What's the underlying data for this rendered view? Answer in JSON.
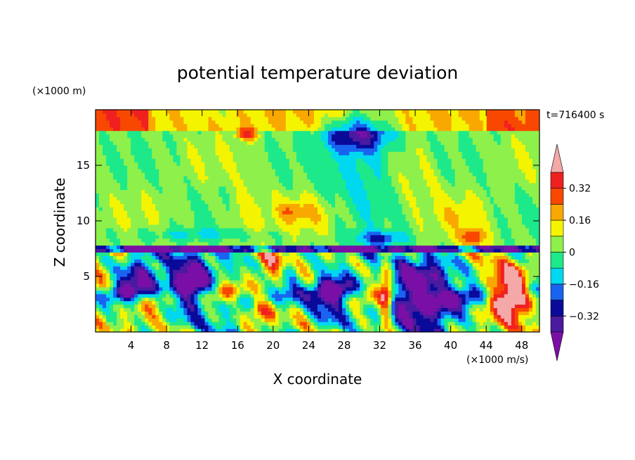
{
  "chart_data": {
    "type": "heatmap",
    "title": "potential temperature deviation",
    "xlabel": "X coordinate",
    "ylabel": "Z coordinate",
    "x_unit": "(×1000 m/s)",
    "y_unit": "(×1000 m)",
    "time_label": "t=716400 s",
    "xlim": [
      0,
      50
    ],
    "ylim": [
      0,
      20
    ],
    "x_ticks": [
      4,
      8,
      12,
      16,
      20,
      24,
      28,
      32,
      36,
      40,
      44,
      48
    ],
    "y_ticks": [
      5,
      10,
      15
    ],
    "colorbar": {
      "levels": [
        -0.4,
        -0.32,
        -0.24,
        -0.16,
        -0.08,
        0,
        0.08,
        0.16,
        0.24,
        0.32,
        0.4
      ],
      "labels": [
        "0.32",
        "0.16",
        "0",
        "−0.16",
        "−0.32"
      ],
      "label_values": [
        0.32,
        0.16,
        0,
        -0.16,
        -0.32
      ],
      "colors": [
        "#7a0fa6",
        "#4b1aa0",
        "#0a0a9a",
        "#1a63f0",
        "#00d8f0",
        "#1de98a",
        "#8ef04a",
        "#f4f400",
        "#f8a800",
        "#f84800",
        "#f02020",
        "#f4a8a8"
      ]
    },
    "grid": false,
    "legend": "colorbar-right"
  }
}
